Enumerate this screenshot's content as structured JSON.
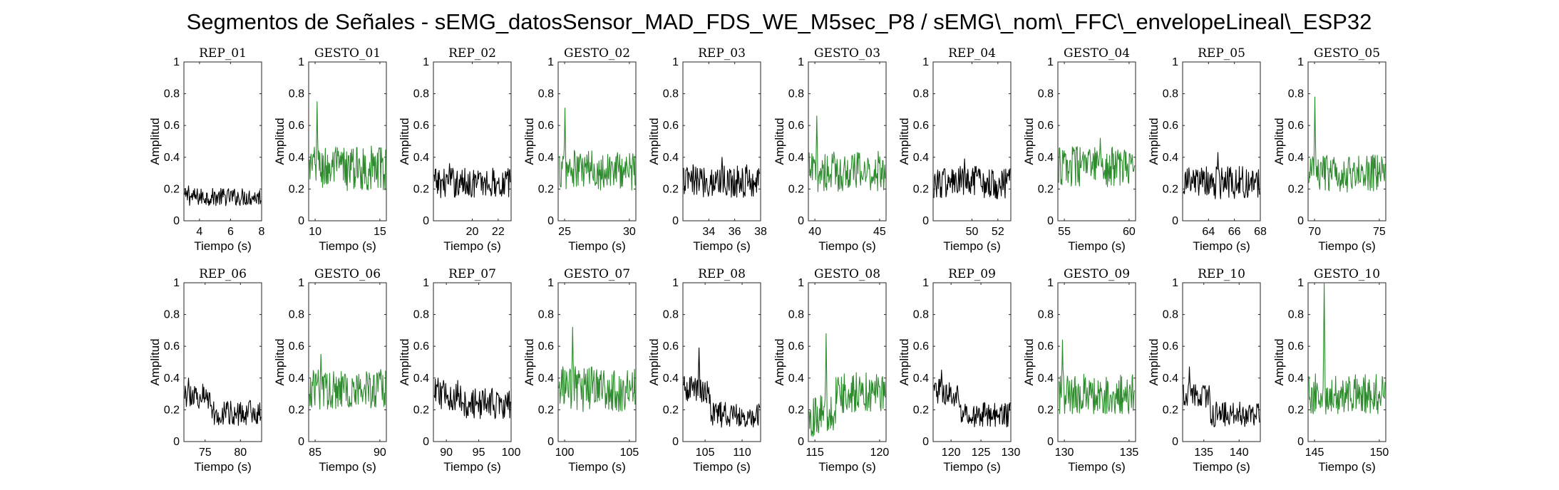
{
  "figure": {
    "title": "Segmentos de Señales - sEMG_datosSensor_MAD_FDS_WE_M5sec_P8 / sEMG\\_nom\\_FFC\\_envelopeLineal\\_ESP32"
  },
  "colors": {
    "rep": "#000000",
    "gesto": "#2e8b2e",
    "axis": "#262626"
  },
  "chart_data": [
    {
      "type": "line",
      "title": "REP_01",
      "xlabel": "Tiempo (s)",
      "ylabel": "Amplitud",
      "xlim": [
        3,
        8
      ],
      "ylim": [
        0,
        1
      ],
      "xticks": [
        4,
        6,
        8
      ],
      "yticks": [
        0,
        0.2,
        0.4,
        0.6,
        0.8,
        1
      ],
      "color": "#000000",
      "mean": 0.15,
      "spread": 0.035,
      "peak_at": 0.05,
      "peak": 0.22
    },
    {
      "type": "line",
      "title": "GESTO_01",
      "xlabel": "Tiempo (s)",
      "ylabel": "Amplitud",
      "xlim": [
        9.5,
        15.5
      ],
      "ylim": [
        0,
        1
      ],
      "xticks": [
        10,
        15
      ],
      "yticks": [
        0,
        0.2,
        0.4,
        0.6,
        0.8,
        1
      ],
      "color": "#2e8b2e",
      "mean": 0.33,
      "spread": 0.09,
      "peak_at": 0.1,
      "peak": 0.75
    },
    {
      "type": "line",
      "title": "REP_02",
      "xlabel": "Tiempo (s)",
      "ylabel": "Amplitud",
      "xlim": [
        17,
        23
      ],
      "ylim": [
        0,
        1
      ],
      "xticks": [
        20,
        22
      ],
      "yticks": [
        0,
        0.2,
        0.4,
        0.6,
        0.8,
        1
      ],
      "color": "#000000",
      "mean": 0.24,
      "spread": 0.06,
      "peak_at": 0.2,
      "peak": 0.36
    },
    {
      "type": "line",
      "title": "GESTO_02",
      "xlabel": "Tiempo (s)",
      "ylabel": "Amplitud",
      "xlim": [
        24.5,
        30.5
      ],
      "ylim": [
        0,
        1
      ],
      "xticks": [
        25,
        30
      ],
      "yticks": [
        0,
        0.2,
        0.4,
        0.6,
        0.8,
        1
      ],
      "color": "#2e8b2e",
      "mean": 0.32,
      "spread": 0.08,
      "peak_at": 0.08,
      "peak": 0.71
    },
    {
      "type": "line",
      "title": "REP_03",
      "xlabel": "Tiempo (s)",
      "ylabel": "Amplitud",
      "xlim": [
        32,
        38
      ],
      "ylim": [
        0,
        1
      ],
      "xticks": [
        34,
        36,
        38
      ],
      "yticks": [
        0,
        0.2,
        0.4,
        0.6,
        0.8,
        1
      ],
      "color": "#000000",
      "mean": 0.25,
      "spread": 0.065,
      "peak_at": 0.5,
      "peak": 0.4
    },
    {
      "type": "line",
      "title": "GESTO_03",
      "xlabel": "Tiempo (s)",
      "ylabel": "Amplitud",
      "xlim": [
        39.5,
        45.5
      ],
      "ylim": [
        0,
        1
      ],
      "xticks": [
        40,
        45
      ],
      "yticks": [
        0,
        0.2,
        0.4,
        0.6,
        0.8,
        1
      ],
      "color": "#2e8b2e",
      "mean": 0.31,
      "spread": 0.08,
      "peak_at": 0.1,
      "peak": 0.66
    },
    {
      "type": "line",
      "title": "REP_04",
      "xlabel": "Tiempo (s)",
      "ylabel": "Amplitud",
      "xlim": [
        47,
        53
      ],
      "ylim": [
        0,
        1
      ],
      "xticks": [
        50,
        52
      ],
      "yticks": [
        0,
        0.2,
        0.4,
        0.6,
        0.8,
        1
      ],
      "color": "#000000",
      "mean": 0.24,
      "spread": 0.065,
      "peak_at": 0.4,
      "peak": 0.39
    },
    {
      "type": "line",
      "title": "GESTO_04",
      "xlabel": "Tiempo (s)",
      "ylabel": "Amplitud",
      "xlim": [
        54.5,
        60.5
      ],
      "ylim": [
        0,
        1
      ],
      "xticks": [
        55,
        60
      ],
      "yticks": [
        0,
        0.2,
        0.4,
        0.6,
        0.8,
        1
      ],
      "color": "#2e8b2e",
      "mean": 0.34,
      "spread": 0.08,
      "peak_at": 0.55,
      "peak": 0.52
    },
    {
      "type": "line",
      "title": "REP_05",
      "xlabel": "Tiempo (s)",
      "ylabel": "Amplitud",
      "xlim": [
        62,
        68
      ],
      "ylim": [
        0,
        1
      ],
      "xticks": [
        64,
        66,
        68
      ],
      "yticks": [
        0,
        0.2,
        0.4,
        0.6,
        0.8,
        1
      ],
      "color": "#000000",
      "mean": 0.24,
      "spread": 0.065,
      "peak_at": 0.45,
      "peak": 0.43
    },
    {
      "type": "line",
      "title": "GESTO_05",
      "xlabel": "Tiempo (s)",
      "ylabel": "Amplitud",
      "xlim": [
        69.5,
        75.5
      ],
      "ylim": [
        0,
        1
      ],
      "xticks": [
        70,
        75
      ],
      "yticks": [
        0,
        0.2,
        0.4,
        0.6,
        0.8,
        1
      ],
      "color": "#2e8b2e",
      "mean": 0.3,
      "spread": 0.075,
      "peak_at": 0.08,
      "peak": 0.78
    },
    {
      "type": "line",
      "title": "REP_06",
      "xlabel": "Tiempo (s)",
      "ylabel": "Amplitud",
      "xlim": [
        72,
        83
      ],
      "ylim": [
        0,
        1
      ],
      "xticks": [
        75,
        80
      ],
      "yticks": [
        0,
        0.2,
        0.4,
        0.6,
        0.8,
        1
      ],
      "color": "#000000",
      "mean": 0.18,
      "spread": 0.05,
      "peak_at": 0.05,
      "peak": 0.4,
      "early_level": 0.3
    },
    {
      "type": "line",
      "title": "GESTO_06",
      "xlabel": "Tiempo (s)",
      "ylabel": "Amplitud",
      "xlim": [
        84.5,
        90.5
      ],
      "ylim": [
        0,
        1
      ],
      "xticks": [
        85,
        90
      ],
      "yticks": [
        0,
        0.2,
        0.4,
        0.6,
        0.8,
        1
      ],
      "color": "#2e8b2e",
      "mean": 0.33,
      "spread": 0.08,
      "peak_at": 0.15,
      "peak": 0.55
    },
    {
      "type": "line",
      "title": "REP_07",
      "xlabel": "Tiempo (s)",
      "ylabel": "Amplitud",
      "xlim": [
        88,
        100
      ],
      "ylim": [
        0,
        1
      ],
      "xticks": [
        90,
        95,
        100
      ],
      "yticks": [
        0,
        0.2,
        0.4,
        0.6,
        0.8,
        1
      ],
      "color": "#000000",
      "mean": 0.24,
      "spread": 0.06,
      "peak_at": 0.05,
      "peak": 0.4,
      "early_level": 0.3
    },
    {
      "type": "line",
      "title": "GESTO_07",
      "xlabel": "Tiempo (s)",
      "ylabel": "Amplitud",
      "xlim": [
        99.5,
        105.5
      ],
      "ylim": [
        0,
        1
      ],
      "xticks": [
        100,
        105
      ],
      "yticks": [
        0,
        0.2,
        0.4,
        0.6,
        0.8,
        1
      ],
      "color": "#2e8b2e",
      "mean": 0.33,
      "spread": 0.09,
      "peak_at": 0.18,
      "peak": 0.72
    },
    {
      "type": "line",
      "title": "REP_08",
      "xlabel": "Tiempo (s)",
      "ylabel": "Amplitud",
      "xlim": [
        102,
        112.5
      ],
      "ylim": [
        0,
        1
      ],
      "xticks": [
        105,
        110
      ],
      "yticks": [
        0,
        0.2,
        0.4,
        0.6,
        0.8,
        1
      ],
      "color": "#000000",
      "mean": 0.17,
      "spread": 0.05,
      "peak_at": 0.2,
      "peak": 0.59,
      "early_level": 0.34
    },
    {
      "type": "line",
      "title": "GESTO_08",
      "xlabel": "Tiempo (s)",
      "ylabel": "Amplitud",
      "xlim": [
        114.5,
        120.5
      ],
      "ylim": [
        0,
        1
      ],
      "xticks": [
        115,
        120
      ],
      "yticks": [
        0,
        0.2,
        0.4,
        0.6,
        0.8,
        1
      ],
      "color": "#2e8b2e",
      "mean": 0.31,
      "spread": 0.08,
      "peak_at": 0.22,
      "peak": 0.68,
      "early_level": 0.15
    },
    {
      "type": "line",
      "title": "REP_09",
      "xlabel": "Tiempo (s)",
      "ylabel": "Amplitud",
      "xlim": [
        117,
        130
      ],
      "ylim": [
        0,
        1
      ],
      "xticks": [
        120,
        125,
        130
      ],
      "yticks": [
        0,
        0.2,
        0.4,
        0.6,
        0.8,
        1
      ],
      "color": "#000000",
      "mean": 0.17,
      "spread": 0.05,
      "peak_at": 0.1,
      "peak": 0.45,
      "early_level": 0.32
    },
    {
      "type": "line",
      "title": "GESTO_09",
      "xlabel": "Tiempo (s)",
      "ylabel": "Amplitud",
      "xlim": [
        129.5,
        135.5
      ],
      "ylim": [
        0,
        1
      ],
      "xticks": [
        130,
        135
      ],
      "yticks": [
        0,
        0.2,
        0.4,
        0.6,
        0.8,
        1
      ],
      "color": "#2e8b2e",
      "mean": 0.3,
      "spread": 0.08,
      "peak_at": 0.05,
      "peak": 0.64
    },
    {
      "type": "line",
      "title": "REP_10",
      "xlabel": "Tiempo (s)",
      "ylabel": "Amplitud",
      "xlim": [
        132,
        143
      ],
      "ylim": [
        0,
        1
      ],
      "xticks": [
        135,
        140
      ],
      "yticks": [
        0,
        0.2,
        0.4,
        0.6,
        0.8,
        1
      ],
      "color": "#000000",
      "mean": 0.17,
      "spread": 0.05,
      "peak_at": 0.08,
      "peak": 0.47,
      "early_level": 0.3
    },
    {
      "type": "line",
      "title": "GESTO_10",
      "xlabel": "Tiempo (s)",
      "ylabel": "Amplitud",
      "xlim": [
        144.5,
        150.5
      ],
      "ylim": [
        0,
        1
      ],
      "xticks": [
        145,
        150
      ],
      "yticks": [
        0,
        0.2,
        0.4,
        0.6,
        0.8,
        1
      ],
      "color": "#2e8b2e",
      "mean": 0.3,
      "spread": 0.08,
      "peak_at": 0.2,
      "peak": 1.0
    }
  ]
}
